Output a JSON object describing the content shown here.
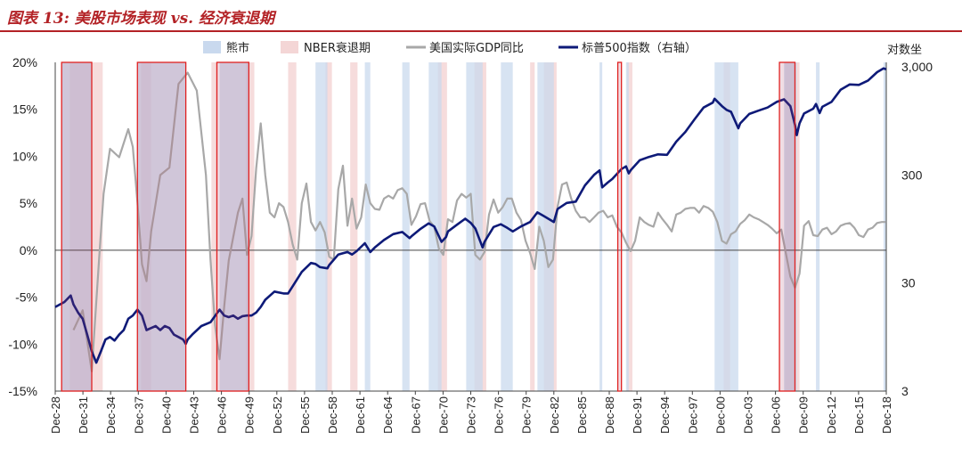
{
  "header": {
    "title": "图表 13: 美股市场表现 vs. 经济衰退期"
  },
  "chart_data": {
    "type": "line",
    "title": "图表 13: 美股市场表现 vs. 经济衰退期",
    "y2label": "对数坐",
    "legend_position": "top",
    "legend": [
      {
        "name": "熊市",
        "kind": "band",
        "color": "#c9d9ee"
      },
      {
        "name": "NBER衰退期",
        "kind": "band",
        "color": "#f4d6d6"
      },
      {
        "name": "美国实际GDP同比",
        "kind": "line",
        "color": "#a8a8a8"
      },
      {
        "name": "标普500指数（右轴）",
        "kind": "line",
        "color": "#0e1a78"
      }
    ],
    "x_tick_labels": [
      "Dec-28",
      "Dec-31",
      "Dec-34",
      "Dec-37",
      "Dec-40",
      "Dec-43",
      "Dec-46",
      "Dec-49",
      "Dec-52",
      "Dec-55",
      "Dec-58",
      "Dec-61",
      "Dec-64",
      "Dec-67",
      "Dec-70",
      "Dec-73",
      "Dec-76",
      "Dec-79",
      "Dec-82",
      "Dec-85",
      "Dec-88",
      "Dec-91",
      "Dec-94",
      "Dec-97",
      "Dec-00",
      "Dec-03",
      "Dec-06",
      "Dec-09",
      "Dec-12",
      "Dec-15",
      "Dec-18"
    ],
    "xlim": [
      1928.0,
      2019.0
    ],
    "ylim_left": [
      -15,
      20
    ],
    "y_left_ticks": [
      20,
      15,
      10,
      5,
      0,
      -5,
      -10,
      -15
    ],
    "y_left_tick_labels": [
      "20%",
      "15%",
      "10%",
      "5%",
      "0%",
      "-5%",
      "-10%",
      "-15%"
    ],
    "ylim_right_log": [
      3,
      3300
    ],
    "y_right_ticks": [
      3,
      30,
      300,
      3000
    ],
    "y_right_tick_labels": [
      "3",
      "30",
      "300",
      "3,000"
    ],
    "red_outlined_periods": [
      [
        1928.7,
        1932.0
      ],
      [
        1937.0,
        1942.3
      ],
      [
        1945.7,
        1949.2
      ],
      [
        1989.6,
        1990.0
      ],
      [
        2007.3,
        2009.0
      ]
    ],
    "bear_markets": [
      [
        1928.7,
        1932.0
      ],
      [
        1937.0,
        1942.3
      ],
      [
        1946.0,
        1949.2
      ],
      [
        1956.5,
        1957.8
      ],
      [
        1961.9,
        1962.5
      ],
      [
        1966.0,
        1966.8
      ],
      [
        1968.9,
        1970.3
      ],
      [
        1973.0,
        1974.8
      ],
      [
        1976.8,
        1978.1
      ],
      [
        1980.8,
        1982.6
      ],
      [
        1987.6,
        1987.9
      ],
      [
        1990.5,
        1990.8
      ],
      [
        2000.2,
        2002.8
      ],
      [
        2007.8,
        2009.2
      ],
      [
        2011.3,
        2011.7
      ],
      [
        2018.7,
        2018.98
      ]
    ],
    "nber_recessions": [
      [
        1929.6,
        1933.2
      ],
      [
        1937.4,
        1938.5
      ],
      [
        1945.1,
        1945.8
      ],
      [
        1948.9,
        1949.8
      ],
      [
        1953.5,
        1954.4
      ],
      [
        1957.6,
        1958.3
      ],
      [
        1960.3,
        1961.1
      ],
      [
        1969.9,
        1970.9
      ],
      [
        1973.9,
        1975.2
      ],
      [
        1980.0,
        1980.5
      ],
      [
        1981.5,
        1982.9
      ],
      [
        1990.6,
        1991.2
      ],
      [
        2001.2,
        2001.9
      ],
      [
        2007.9,
        2009.5
      ]
    ],
    "series": [
      {
        "name": "美国实际GDP同比",
        "axis": "left",
        "color": "#a8a8a8",
        "x": [
          1930.0,
          1931.0,
          1932.0,
          1932.8,
          1933.3,
          1934.0,
          1935.0,
          1936.0,
          1936.5,
          1937.0,
          1937.5,
          1938.0,
          1938.5,
          1939.5,
          1940.5,
          1941.5,
          1942.5,
          1943.5,
          1944.5,
          1945.0,
          1945.5,
          1946.0,
          1946.5,
          1947.0,
          1948.0,
          1948.5,
          1949.0,
          1949.5,
          1950.0,
          1950.5,
          1951.0,
          1951.5,
          1952.0,
          1952.5,
          1953.0,
          1953.5,
          1954.0,
          1954.5,
          1955.0,
          1955.5,
          1956.0,
          1956.5,
          1957.0,
          1957.5,
          1958.0,
          1958.5,
          1959.0,
          1959.5,
          1960.0,
          1960.5,
          1961.0,
          1961.5,
          1962.0,
          1962.5,
          1963.0,
          1963.5,
          1964.0,
          1964.5,
          1965.0,
          1965.5,
          1966.0,
          1966.5,
          1967.0,
          1967.5,
          1968.0,
          1968.5,
          1969.0,
          1969.5,
          1970.0,
          1970.5,
          1971.0,
          1971.5,
          1972.0,
          1972.5,
          1973.0,
          1973.5,
          1974.0,
          1974.5,
          1975.0,
          1975.5,
          1976.0,
          1976.5,
          1977.0,
          1977.5,
          1978.0,
          1978.5,
          1979.0,
          1979.5,
          1980.0,
          1980.5,
          1981.0,
          1981.5,
          1982.0,
          1982.5,
          1983.0,
          1983.5,
          1984.0,
          1984.5,
          1985.0,
          1985.5,
          1986.0,
          1986.5,
          1987.0,
          1987.5,
          1988.0,
          1988.5,
          1989.0,
          1989.5,
          1990.0,
          1990.5,
          1991.0,
          1991.5,
          1992.0,
          1992.5,
          1993.0,
          1993.5,
          1994.0,
          1994.5,
          1995.0,
          1995.5,
          1996.0,
          1996.5,
          1997.0,
          1997.5,
          1998.0,
          1998.5,
          1999.0,
          1999.5,
          2000.0,
          2000.5,
          2001.0,
          2001.5,
          2002.0,
          2002.5,
          2003.0,
          2003.5,
          2004.0,
          2004.5,
          2005.0,
          2005.5,
          2006.0,
          2006.5,
          2007.0,
          2007.5,
          2008.0,
          2008.5,
          2009.0,
          2009.5,
          2010.0,
          2010.5,
          2011.0,
          2011.5,
          2012.0,
          2012.5,
          2013.0,
          2013.5,
          2014.0,
          2014.5,
          2015.0,
          2015.5,
          2016.0,
          2016.5,
          2017.0,
          2017.5,
          2018.0,
          2018.5,
          2018.9
        ],
        "values": [
          -8.5,
          -6.4,
          -12.9,
          -1.0,
          6.0,
          10.8,
          9.9,
          12.9,
          11.0,
          5.1,
          -1.5,
          -3.3,
          2.0,
          8.0,
          8.8,
          17.7,
          18.9,
          17.0,
          8.0,
          -1.0,
          -8.0,
          -11.6,
          -6.0,
          -1.1,
          4.0,
          5.5,
          -0.5,
          1.5,
          8.7,
          13.5,
          8.0,
          4.0,
          3.5,
          5.0,
          4.6,
          3.0,
          0.6,
          -1.0,
          5.0,
          7.1,
          3.0,
          2.1,
          3.0,
          1.9,
          -0.7,
          -1.0,
          6.5,
          9.0,
          2.6,
          5.5,
          2.3,
          3.5,
          7.0,
          5.0,
          4.4,
          4.3,
          5.5,
          5.8,
          5.5,
          6.4,
          6.6,
          6.0,
          2.7,
          3.6,
          4.9,
          5.0,
          3.1,
          2.5,
          0.2,
          -0.5,
          3.3,
          3.0,
          5.3,
          6.0,
          5.6,
          6.0,
          -0.5,
          -1.0,
          -0.2,
          3.8,
          5.4,
          4.0,
          4.6,
          5.5,
          5.5,
          4.0,
          3.2,
          1.0,
          -0.3,
          -2.0,
          2.5,
          1.0,
          -1.8,
          -1.0,
          4.6,
          7.0,
          7.2,
          5.5,
          4.2,
          3.5,
          3.5,
          3.0,
          3.5,
          4.0,
          4.2,
          3.5,
          3.7,
          2.5,
          1.9,
          0.8,
          -0.1,
          1.0,
          3.5,
          3.0,
          2.7,
          2.5,
          4.0,
          3.3,
          2.7,
          2.0,
          3.8,
          4.0,
          4.4,
          4.5,
          4.5,
          4.0,
          4.7,
          4.5,
          4.1,
          3.0,
          1.0,
          0.7,
          1.7,
          2.0,
          2.8,
          3.2,
          3.8,
          3.5,
          3.3,
          3.0,
          2.7,
          2.3,
          1.8,
          2.2,
          -0.3,
          -2.8,
          -4.0,
          -2.5,
          2.6,
          3.1,
          1.6,
          1.5,
          2.2,
          2.4,
          1.7,
          2.0,
          2.6,
          2.8,
          2.9,
          2.4,
          1.6,
          1.4,
          2.2,
          2.4,
          2.9,
          3.0,
          3.0
        ]
      },
      {
        "name": "标普500指数（右轴）",
        "axis": "right",
        "color": "#0e1a78",
        "x": [
          1928.0,
          1929.0,
          1929.7,
          1930.0,
          1930.5,
          1931.0,
          1931.5,
          1932.0,
          1932.5,
          1933.0,
          1933.5,
          1934.0,
          1934.5,
          1935.0,
          1935.5,
          1936.0,
          1936.5,
          1937.0,
          1937.5,
          1938.0,
          1938.5,
          1939.0,
          1939.5,
          1940.0,
          1940.5,
          1941.0,
          1941.5,
          1942.0,
          1942.3,
          1942.5,
          1943.0,
          1944.0,
          1945.0,
          1946.0,
          1946.5,
          1947.0,
          1947.5,
          1948.0,
          1948.5,
          1949.0,
          1949.5,
          1950.0,
          1950.5,
          1951.0,
          1952.0,
          1953.0,
          1953.5,
          1954.0,
          1955.0,
          1956.0,
          1956.5,
          1957.0,
          1957.8,
          1958.0,
          1959.0,
          1960.0,
          1960.5,
          1961.0,
          1961.9,
          1962.5,
          1963.0,
          1964.0,
          1965.0,
          1966.0,
          1966.8,
          1967.0,
          1968.0,
          1968.9,
          1969.5,
          1970.3,
          1970.8,
          1971.0,
          1972.0,
          1972.9,
          1973.5,
          1974.0,
          1974.8,
          1975.0,
          1976.0,
          1976.8,
          1977.5,
          1978.1,
          1979.0,
          1980.0,
          1980.8,
          1981.5,
          1982.6,
          1983.0,
          1984.0,
          1985.0,
          1986.0,
          1987.0,
          1987.6,
          1987.9,
          1988.5,
          1989.0,
          1990.0,
          1990.5,
          1990.8,
          1991.0,
          1992.0,
          1993.0,
          1994.0,
          1995.0,
          1996.0,
          1997.0,
          1998.0,
          1999.0,
          2000.0,
          2000.2,
          2001.0,
          2001.5,
          2002.0,
          2002.8,
          2003.0,
          2004.0,
          2005.0,
          2006.0,
          2007.0,
          2007.8,
          2008.5,
          2009.0,
          2009.2,
          2009.5,
          2010.0,
          2011.0,
          2011.3,
          2011.7,
          2012.0,
          2013.0,
          2014.0,
          2015.0,
          2016.0,
          2017.0,
          2018.0,
          2018.7,
          2018.98
        ],
        "values": [
          18,
          20,
          23,
          19,
          16,
          14,
          10,
          7,
          5.5,
          7,
          9,
          9.5,
          8.8,
          10,
          11,
          14,
          15,
          17,
          15,
          11,
          11.5,
          12,
          11,
          12,
          11.5,
          10,
          9.5,
          9,
          8.2,
          9,
          10,
          12,
          13,
          17,
          15,
          14.5,
          15,
          14,
          14.8,
          15,
          15,
          16,
          18,
          21,
          25,
          24,
          24,
          28,
          38,
          46,
          45,
          42,
          41,
          44,
          55,
          58,
          55,
          59,
          70,
          58,
          64,
          75,
          85,
          89,
          78,
          81,
          95,
          107,
          100,
          72,
          80,
          90,
          104,
          118,
          108,
          96,
          64,
          72,
          99,
          105,
          97,
          90,
          100,
          110,
          135,
          125,
          110,
          145,
          165,
          170,
          240,
          300,
          330,
          230,
          255,
          275,
          340,
          360,
          310,
          330,
          410,
          440,
          465,
          460,
          610,
          750,
          980,
          1260,
          1400,
          1520,
          1300,
          1200,
          1150,
          810,
          900,
          1100,
          1180,
          1260,
          1420,
          1500,
          1300,
          870,
          700,
          900,
          1110,
          1230,
          1360,
          1120,
          1280,
          1420,
          1840,
          2060,
          2040,
          2240,
          2680,
          2900,
          2850
        ]
      }
    ]
  }
}
